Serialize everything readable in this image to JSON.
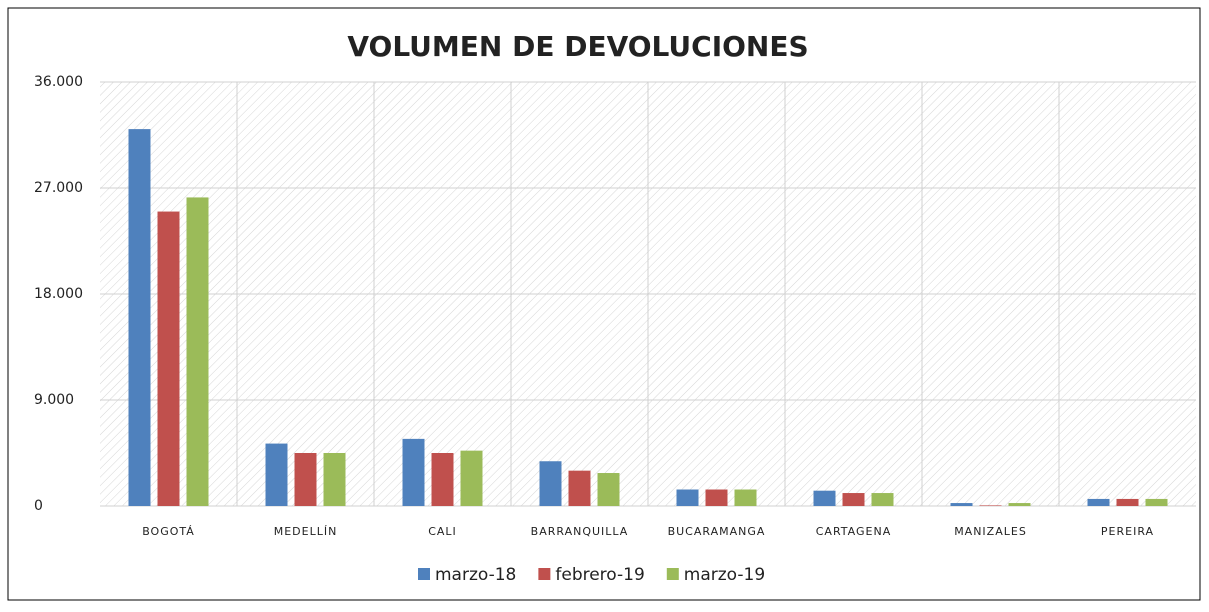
{
  "chart_data": {
    "type": "bar",
    "title": "VOLUMEN DE DEVOLUCIONES",
    "categories": [
      "BOGOTÁ",
      "MEDELLÍN",
      "CALI",
      "BARRANQUILLA",
      "BUCARAMANGA",
      "CARTAGENA",
      "MANIZALES",
      "PEREIRA"
    ],
    "series": [
      {
        "name": "marzo-18",
        "color": "#4f81bd",
        "values": [
          32000,
          5300,
          5700,
          3800,
          1400,
          1300,
          250,
          600
        ]
      },
      {
        "name": "febrero-19",
        "color": "#c0504d",
        "values": [
          25000,
          4500,
          4500,
          3000,
          1400,
          1100,
          50,
          600
        ]
      },
      {
        "name": "marzo-19",
        "color": "#9bbb59",
        "values": [
          26200,
          4500,
          4700,
          2800,
          1400,
          1100,
          250,
          600
        ]
      }
    ],
    "ylim": [
      0,
      36000
    ],
    "yticks": [
      0,
      {
        "value": 9000,
        "label": "9.000"
      },
      {
        "value": 18000,
        "label": "18.000"
      },
      {
        "value": 27000,
        "label": "27.000"
      },
      {
        "value": 36000,
        "label": "36.000"
      }
    ],
    "grid": true,
    "legend": "bottom"
  }
}
